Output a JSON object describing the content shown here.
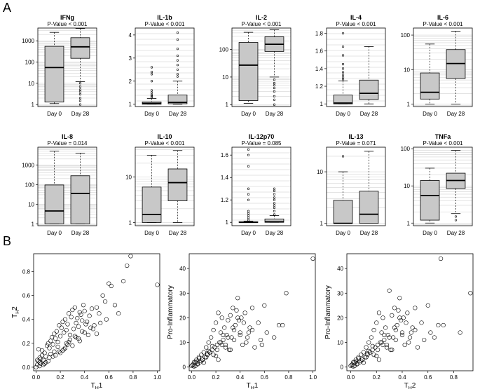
{
  "figure": {
    "panel_a_label": "A",
    "panel_b_label": "B"
  },
  "chart_data": [
    {
      "type": "box",
      "title": "IFNg",
      "subtitle": "P-Value < 0.001",
      "scale": "log",
      "categories": [
        "Day 0",
        "Day 28"
      ],
      "ylim": [
        0.8,
        4000
      ],
      "yticks": [
        1,
        10,
        100,
        1000
      ],
      "ytick_labels": [
        "1",
        "10",
        "100",
        "1000"
      ],
      "boxes": [
        {
          "whislo": 1.1,
          "q1": 1.3,
          "med": 55,
          "q3": 550,
          "whishi": 2500,
          "fliers": []
        },
        {
          "whislo": 12,
          "q1": 150,
          "med": 520,
          "q3": 1400,
          "whishi": 3800,
          "fliers": [
            10,
            7,
            5,
            4,
            3,
            2,
            1.5,
            1
          ]
        }
      ]
    },
    {
      "type": "box",
      "title": "IL-1b",
      "subtitle": "P-Value < 0.001",
      "scale": "linear",
      "categories": [
        "Day 0",
        "Day 28"
      ],
      "ylim": [
        0.9,
        4.3
      ],
      "yticks": [
        1,
        2,
        3,
        4
      ],
      "ytick_labels": [
        "1",
        "2",
        "3",
        "4"
      ],
      "boxes": [
        {
          "whislo": 1.0,
          "q1": 1.0,
          "med": 1.04,
          "q3": 1.1,
          "whishi": 1.25,
          "fliers": [
            1.3,
            1.35,
            1.4,
            1.5,
            1.6,
            2.0,
            2.3,
            2.4,
            2.6
          ]
        },
        {
          "whislo": 1.0,
          "q1": 1.02,
          "med": 1.08,
          "q3": 1.4,
          "whishi": 2.0,
          "fliers": [
            2.2,
            2.3,
            2.5,
            2.7,
            2.9,
            3.1,
            3.4,
            3.8,
            4.1
          ]
        }
      ]
    },
    {
      "type": "box",
      "title": "IL-2",
      "subtitle": "P-Value < 0.001",
      "scale": "log",
      "categories": [
        "Day 0",
        "Day 28"
      ],
      "ylim": [
        0.85,
        600
      ],
      "yticks": [
        1,
        10,
        100
      ],
      "ytick_labels": [
        "1",
        "10",
        "100"
      ],
      "boxes": [
        {
          "whislo": 1.1,
          "q1": 1.4,
          "med": 27,
          "q3": 180,
          "whishi": 420,
          "fliers": []
        },
        {
          "whislo": 10,
          "q1": 85,
          "med": 155,
          "q3": 290,
          "whishi": 520,
          "fliers": [
            8,
            6,
            5,
            4,
            3,
            2,
            1.5,
            1
          ]
        }
      ]
    },
    {
      "type": "box",
      "title": "IL-4",
      "subtitle": "P-Value < 0.001",
      "scale": "linear",
      "categories": [
        "Day 0",
        "Day 28"
      ],
      "ylim": [
        0.97,
        1.86
      ],
      "yticks": [
        1.0,
        1.2,
        1.4,
        1.6,
        1.8
      ],
      "ytick_labels": [
        "1",
        "1.2",
        "1.4",
        "1.6",
        "1.8"
      ],
      "boxes": [
        {
          "whislo": 1.0,
          "q1": 1.0,
          "med": 1.01,
          "q3": 1.1,
          "whishi": 1.26,
          "fliers": [
            1.28,
            1.3,
            1.33,
            1.36,
            1.4,
            1.45,
            1.55,
            1.65,
            1.8
          ]
        },
        {
          "whislo": 1.0,
          "q1": 1.05,
          "med": 1.12,
          "q3": 1.27,
          "whishi": 1.65,
          "fliers": []
        }
      ]
    },
    {
      "type": "box",
      "title": "IL-6",
      "subtitle": "P-Value < 0.001",
      "scale": "log",
      "categories": [
        "Day 0",
        "Day 28"
      ],
      "ylim": [
        0.85,
        160
      ],
      "yticks": [
        1,
        10,
        100
      ],
      "ytick_labels": [
        "1",
        "10",
        "100"
      ],
      "boxes": [
        {
          "whislo": 1.0,
          "q1": 1.4,
          "med": 2.2,
          "q3": 8,
          "whishi": 55,
          "fliers": []
        },
        {
          "whislo": 1.0,
          "q1": 5.5,
          "med": 15,
          "q3": 38,
          "whishi": 130,
          "fliers": []
        }
      ]
    },
    {
      "type": "box",
      "title": "IL-8",
      "subtitle": "P-Value = 0.014",
      "scale": "log",
      "categories": [
        "Day 0",
        "Day 28"
      ],
      "ylim": [
        0.8,
        8000
      ],
      "yticks": [
        1,
        10,
        100,
        1000
      ],
      "ytick_labels": [
        "1",
        "10",
        "100",
        "1000"
      ],
      "boxes": [
        {
          "whislo": 1.0,
          "q1": 1.0,
          "med": 4.5,
          "q3": 95,
          "whishi": 5000,
          "fliers": []
        },
        {
          "whislo": 1.0,
          "q1": 1.0,
          "med": 35,
          "q3": 280,
          "whishi": 4000,
          "fliers": []
        }
      ]
    },
    {
      "type": "box",
      "title": "IL-10",
      "subtitle": "P-Value < 0.001",
      "scale": "log",
      "categories": [
        "Day 0",
        "Day 28"
      ],
      "ylim": [
        0.85,
        45
      ],
      "yticks": [
        1,
        10
      ],
      "ytick_labels": [
        "1",
        "10"
      ],
      "boxes": [
        {
          "whislo": 1.0,
          "q1": 1.0,
          "med": 1.5,
          "q3": 6,
          "whishi": 30,
          "fliers": []
        },
        {
          "whislo": 1.0,
          "q1": 3,
          "med": 7.5,
          "q3": 15,
          "whishi": 38,
          "fliers": []
        }
      ]
    },
    {
      "type": "box",
      "title": "IL-12p70",
      "subtitle": "P-Value = 0.085",
      "scale": "linear",
      "categories": [
        "Day 0",
        "Day 28"
      ],
      "ylim": [
        0.97,
        1.67
      ],
      "yticks": [
        1.0,
        1.2,
        1.4,
        1.6
      ],
      "ytick_labels": [
        "1",
        "1.2",
        "1.4",
        "1.6"
      ],
      "boxes": [
        {
          "whislo": 1.0,
          "q1": 1.0,
          "med": 1.0,
          "q3": 1.005,
          "whishi": 1.01,
          "fliers": [
            1.02,
            1.04,
            1.06,
            1.08,
            1.1,
            1.2,
            1.25,
            1.3,
            1.5,
            1.6,
            1.65
          ]
        },
        {
          "whislo": 1.0,
          "q1": 1.0,
          "med": 1.005,
          "q3": 1.03,
          "whishi": 1.06,
          "fliers": [
            1.07,
            1.1,
            1.13,
            1.15,
            1.17,
            1.2,
            1.22,
            1.25,
            1.28,
            1.3
          ]
        }
      ]
    },
    {
      "type": "box",
      "title": "IL-13",
      "subtitle": "P-Value = 0.071",
      "scale": "log",
      "categories": [
        "Day 0",
        "Day 28"
      ],
      "ylim": [
        0.9,
        30
      ],
      "yticks": [
        1,
        10
      ],
      "ytick_labels": [
        "1",
        "10"
      ],
      "boxes": [
        {
          "whislo": 1.0,
          "q1": 1.0,
          "med": 1.0,
          "q3": 2.8,
          "whishi": 10,
          "fliers": [
            20
          ]
        },
        {
          "whislo": 1.0,
          "q1": 1.0,
          "med": 1.5,
          "q3": 4.2,
          "whishi": 25,
          "fliers": []
        }
      ]
    },
    {
      "type": "box",
      "title": "TNFa",
      "subtitle": "P-Value < 0.001",
      "scale": "log",
      "categories": [
        "Day 0",
        "Day 28"
      ],
      "ylim": [
        0.85,
        110
      ],
      "yticks": [
        1,
        10,
        100
      ],
      "ytick_labels": [
        "1",
        "10",
        "100"
      ],
      "boxes": [
        {
          "whislo": 1.0,
          "q1": 1.2,
          "med": 5.5,
          "q3": 14,
          "whishi": 30,
          "fliers": []
        },
        {
          "whislo": 1.8,
          "q1": 8.5,
          "med": 14,
          "q3": 22,
          "whishi": 90,
          "fliers": [
            1.5,
            1.2
          ]
        }
      ]
    },
    {
      "type": "scatter",
      "xlabel_main": "T",
      "xlabel_sub": "H",
      "xlabel_suffix": "1",
      "ylabel_main": "T",
      "ylabel_sub": "H",
      "ylabel_suffix": "2",
      "xlim": [
        -0.02,
        1.02
      ],
      "ylim": [
        -0.03,
        0.95
      ],
      "xticks": [
        0.0,
        0.2,
        0.4,
        0.6,
        0.8,
        1.0
      ],
      "xtick_labels": [
        "0.0",
        "0.2",
        "0.4",
        "0.6",
        "0.8",
        "1.0"
      ],
      "yticks": [
        0.0,
        0.2,
        0.4,
        0.6,
        0.8
      ],
      "ytick_labels": [
        "0.0",
        "0.2",
        "0.4",
        "0.6",
        "0.8"
      ],
      "x": [
        0.0,
        0.01,
        0.02,
        0.03,
        0.03,
        0.04,
        0.05,
        0.06,
        0.07,
        0.08,
        0.02,
        0.05,
        0.09,
        0.1,
        0.11,
        0.12,
        0.13,
        0.14,
        0.15,
        0.16,
        0.17,
        0.18,
        0.19,
        0.2,
        0.21,
        0.22,
        0.23,
        0.24,
        0.25,
        0.26,
        0.27,
        0.28,
        0.29,
        0.3,
        0.31,
        0.32,
        0.33,
        0.34,
        0.35,
        0.36,
        0.37,
        0.38,
        0.39,
        0.4,
        0.42,
        0.44,
        0.46,
        0.48,
        0.5,
        0.52,
        0.55,
        0.57,
        0.6,
        0.62,
        0.68,
        0.72,
        0.75,
        0.78,
        1.0,
        0.08,
        0.12,
        0.15,
        0.18,
        0.22,
        0.25,
        0.28,
        0.3,
        0.33,
        0.36,
        0.4,
        0.45,
        0.5,
        0.04,
        0.06,
        0.1,
        0.14,
        0.2,
        0.24,
        0.27,
        0.35,
        0.38,
        0.43,
        0.47,
        0.53,
        0.58,
        0.65,
        0.01,
        0.03,
        0.07,
        0.11,
        0.16,
        0.19,
        0.23,
        0.26,
        0.32,
        0.41
      ],
      "y": [
        0.0,
        0.02,
        0.05,
        0.01,
        0.08,
        0.03,
        0.1,
        0.06,
        0.12,
        0.04,
        0.15,
        0.14,
        0.18,
        0.2,
        0.16,
        0.22,
        0.25,
        0.19,
        0.28,
        0.24,
        0.3,
        0.21,
        0.35,
        0.26,
        0.33,
        0.38,
        0.29,
        0.4,
        0.31,
        0.36,
        0.45,
        0.27,
        0.42,
        0.48,
        0.32,
        0.5,
        0.37,
        0.41,
        0.34,
        0.46,
        0.44,
        0.39,
        0.52,
        0.47,
        0.38,
        0.43,
        0.49,
        0.35,
        0.5,
        0.45,
        0.6,
        0.55,
        0.7,
        0.68,
        0.45,
        0.72,
        0.85,
        0.93,
        0.69,
        0.09,
        0.11,
        0.13,
        0.17,
        0.14,
        0.2,
        0.23,
        0.18,
        0.25,
        0.22,
        0.29,
        0.33,
        0.28,
        0.07,
        0.02,
        0.05,
        0.09,
        0.12,
        0.16,
        0.21,
        0.24,
        0.3,
        0.27,
        0.32,
        0.37,
        0.4,
        0.52,
        0.06,
        0.04,
        0.03,
        0.08,
        0.1,
        0.13,
        0.15,
        0.19,
        0.26,
        0.36
      ]
    },
    {
      "type": "scatter",
      "xlabel_main": "T",
      "xlabel_sub": "H",
      "xlabel_suffix": "1",
      "ylabel_main": "Pro-Inflammatory",
      "ylabel_sub": "",
      "ylabel_suffix": "",
      "xlim": [
        -0.02,
        1.02
      ],
      "ylim": [
        -1.5,
        46
      ],
      "xticks": [
        0.0,
        0.2,
        0.4,
        0.6,
        0.8,
        1.0
      ],
      "xtick_labels": [
        "0.0",
        "0.2",
        "0.4",
        "0.6",
        "0.8",
        "1.0"
      ],
      "yticks": [
        0,
        10,
        20,
        30,
        40
      ],
      "ytick_labels": [
        "0",
        "10",
        "20",
        "30",
        "40"
      ],
      "x": [
        0.0,
        0.01,
        0.02,
        0.03,
        0.04,
        0.05,
        0.06,
        0.07,
        0.08,
        0.09,
        0.1,
        0.11,
        0.12,
        0.13,
        0.14,
        0.15,
        0.16,
        0.17,
        0.18,
        0.19,
        0.2,
        0.21,
        0.22,
        0.23,
        0.24,
        0.25,
        0.26,
        0.27,
        0.28,
        0.29,
        0.3,
        0.31,
        0.32,
        0.33,
        0.34,
        0.35,
        0.36,
        0.37,
        0.38,
        0.39,
        0.4,
        0.42,
        0.44,
        0.46,
        0.48,
        0.5,
        0.52,
        0.55,
        0.57,
        0.6,
        0.62,
        0.68,
        0.72,
        0.75,
        0.78,
        1.0,
        0.02,
        0.05,
        0.08,
        0.12,
        0.15,
        0.18,
        0.22,
        0.25,
        0.28,
        0.32,
        0.35,
        0.4,
        0.45,
        0.03,
        0.06,
        0.1,
        0.14,
        0.2,
        0.24,
        0.3,
        0.38,
        0.43,
        0.5,
        0.01,
        0.04,
        0.09,
        0.13,
        0.17,
        0.21,
        0.26,
        0.34,
        0.41,
        0.47,
        0.58
      ],
      "y": [
        0.5,
        1,
        2,
        0.5,
        3,
        1.5,
        4,
        2,
        5,
        3,
        6,
        4,
        8,
        5,
        10,
        6,
        12,
        7,
        15,
        8,
        18,
        9,
        22,
        10,
        14,
        20,
        11,
        16,
        9,
        13,
        19,
        7,
        21,
        12,
        24,
        15,
        17,
        23,
        28,
        19,
        14,
        9,
        22,
        12,
        16,
        24,
        8,
        18,
        11,
        25,
        14,
        12,
        17,
        17,
        30,
        44,
        0.3,
        1.2,
        2.5,
        4,
        6,
        5,
        3,
        9,
        8,
        7,
        11,
        13,
        10,
        2,
        3.5,
        1.8,
        6.5,
        4.5,
        10,
        12,
        20,
        18,
        15,
        0.8,
        2.2,
        3,
        5.5,
        8.5,
        7,
        13,
        16,
        20,
        14,
        9
      ]
    },
    {
      "type": "scatter",
      "xlabel_main": "T",
      "xlabel_sub": "H",
      "xlabel_suffix": "2",
      "ylabel_main": "Pro-Inflammatory",
      "ylabel_sub": "",
      "ylabel_suffix": "",
      "xlim": [
        -0.03,
        0.95
      ],
      "ylim": [
        -1.5,
        46
      ],
      "xticks": [
        0.0,
        0.2,
        0.4,
        0.6,
        0.8
      ],
      "xtick_labels": [
        "0.0",
        "0.2",
        "0.4",
        "0.6",
        "0.8"
      ],
      "yticks": [
        0,
        10,
        20,
        30,
        40
      ],
      "ytick_labels": [
        "0",
        "10",
        "20",
        "30",
        "40"
      ],
      "x": [
        0.0,
        0.01,
        0.02,
        0.03,
        0.04,
        0.05,
        0.06,
        0.07,
        0.08,
        0.09,
        0.1,
        0.11,
        0.12,
        0.13,
        0.14,
        0.15,
        0.16,
        0.17,
        0.18,
        0.19,
        0.2,
        0.21,
        0.22,
        0.23,
        0.24,
        0.25,
        0.26,
        0.27,
        0.28,
        0.29,
        0.3,
        0.31,
        0.32,
        0.33,
        0.34,
        0.35,
        0.36,
        0.37,
        0.38,
        0.39,
        0.4,
        0.42,
        0.44,
        0.46,
        0.48,
        0.5,
        0.52,
        0.55,
        0.57,
        0.6,
        0.62,
        0.65,
        0.68,
        0.7,
        0.72,
        0.85,
        0.93,
        0.02,
        0.05,
        0.08,
        0.12,
        0.15,
        0.18,
        0.22,
        0.25,
        0.28,
        0.32,
        0.35,
        0.4,
        0.45,
        0.03,
        0.06,
        0.1,
        0.14,
        0.2,
        0.24,
        0.3,
        0.38,
        0.43,
        0.5,
        0.01,
        0.04,
        0.09,
        0.13,
        0.17,
        0.21,
        0.26,
        0.34,
        0.41,
        0.47
      ],
      "y": [
        0.5,
        1,
        2,
        0.5,
        3,
        1.5,
        4,
        2,
        5,
        3,
        6,
        4,
        8,
        5,
        10,
        6,
        12,
        7,
        15,
        8,
        18,
        9,
        22,
        10,
        14,
        20,
        11,
        16,
        9,
        13,
        31,
        7,
        21,
        12,
        24,
        15,
        17,
        23,
        28,
        19,
        14,
        9,
        22,
        12,
        16,
        24,
        8,
        18,
        11,
        25,
        14,
        12,
        17,
        44,
        17,
        14,
        30,
        0.3,
        1.2,
        2.5,
        4,
        6,
        5,
        3,
        9,
        8,
        7,
        11,
        13,
        10,
        2,
        3.5,
        1.8,
        6.5,
        4.5,
        10,
        12,
        20,
        18,
        15,
        0.8,
        2.2,
        3,
        5.5,
        8.5,
        7,
        13,
        16,
        20,
        14
      ]
    }
  ]
}
